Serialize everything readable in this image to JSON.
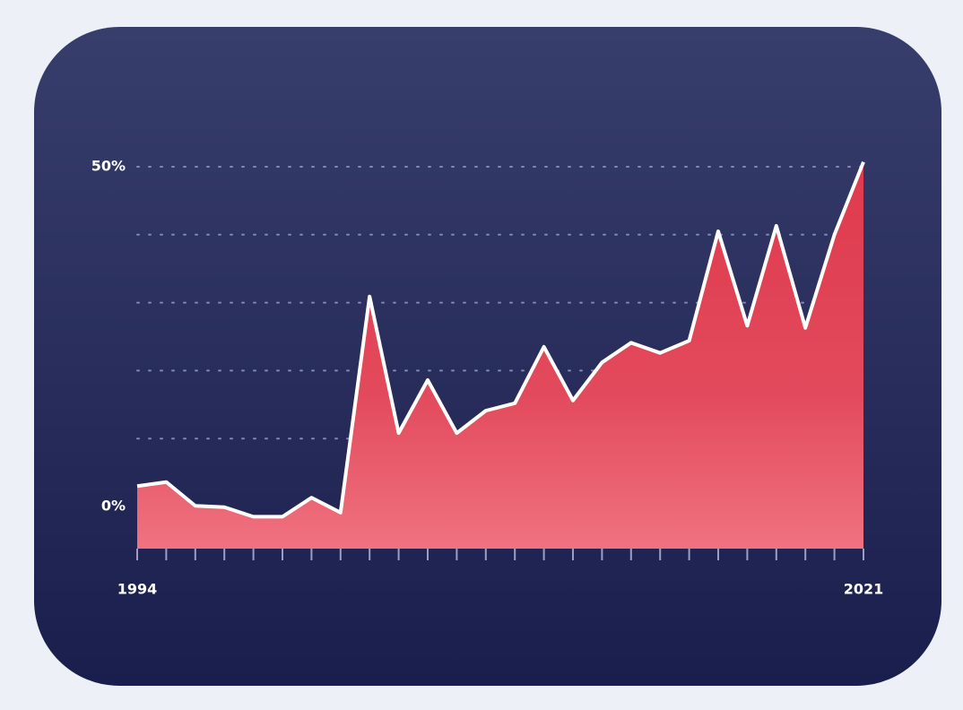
{
  "chart_data": {
    "type": "area",
    "categories": [
      "1994",
      null,
      null,
      null,
      null,
      null,
      null,
      null,
      null,
      null,
      null,
      null,
      null,
      null,
      null,
      null,
      null,
      null,
      null,
      null,
      null,
      null,
      null,
      null,
      null,
      "2021"
    ],
    "values": [
      3.0,
      3.6,
      0.1,
      -0.1,
      -1.5,
      -1.5,
      1.3,
      -0.9,
      30.9,
      10.8,
      18.6,
      10.8,
      14.1,
      15.2,
      23.5,
      15.6,
      21.2,
      24.1,
      22.6,
      24.4,
      40.5,
      26.6,
      41.3,
      26.3,
      40.0,
      50.7
    ],
    "ylim": [
      -6.2,
      50
    ],
    "yticks": [
      {
        "value": 0,
        "label": "0%"
      },
      {
        "value": 50,
        "label": "50%"
      }
    ],
    "grid_values": [
      10,
      20,
      30,
      40,
      50
    ],
    "color": "#e23c50",
    "line_color": "#ffffff"
  }
}
